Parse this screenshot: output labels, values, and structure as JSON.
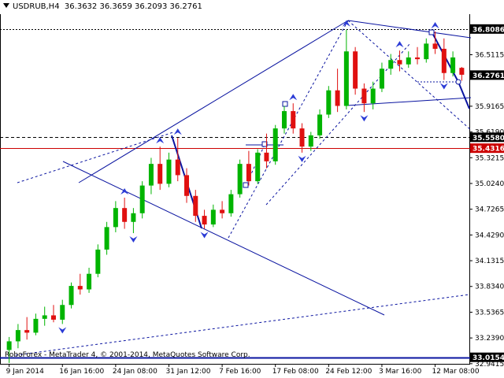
{
  "header": {
    "symbol": "USDRUB,H4",
    "ohlc": "36.3632 36.3659 36.2093 36.2761"
  },
  "copyright": "RoboForex - MetaTrader 4, © 2001-2014, MetaQuotes Software Corp.",
  "colors": {
    "bull": "#00b400",
    "bear": "#e01010",
    "trendline": "#0a14a0",
    "level_red": "#cc0000",
    "arrow": "#2b3bd6"
  },
  "chart_data": {
    "type": "candlestick",
    "symbol": "USDRUB",
    "timeframe": "H4",
    "ylim": [
      32.94,
      36.98
    ],
    "y_ticks": [
      "36.5115",
      "35.9165",
      "35.6190",
      "35.3215",
      "35.0240",
      "34.7265",
      "34.4290",
      "34.1315",
      "33.8340",
      "33.5365",
      "33.2390",
      "32.9415"
    ],
    "x_ticks": [
      "9 Jan 2014",
      "16 Jan 16:00",
      "24 Jan 08:00",
      "31 Jan 12:00",
      "7 Feb 16:00",
      "17 Feb 08:00",
      "24 Feb 12:00",
      "3 Mar 16:00",
      "12 Mar 08:00"
    ],
    "levels": [
      {
        "value": "36.8086",
        "style": "dotted",
        "badge_bg": "#000000",
        "badge_fg": "#ffffff"
      },
      {
        "value": "36.2761",
        "style": "current",
        "badge_bg": "#000000",
        "badge_fg": "#ffffff"
      },
      {
        "value": "35.5580",
        "style": "dashed",
        "badge_bg": "#000000",
        "badge_fg": "#ffffff"
      },
      {
        "value": "35.4316",
        "style": "solid-red",
        "badge_bg": "#cc0000",
        "badge_fg": "#ffffff"
      },
      {
        "value": "33.0154",
        "style": "solid-blue",
        "badge_bg": "#000000",
        "badge_fg": "#ffffff"
      }
    ],
    "candles": [
      {
        "date": "9 Jan 2014",
        "o": 33.1,
        "h": 33.25,
        "l": 32.95,
        "c": 33.2
      },
      {
        "date": "",
        "o": 33.2,
        "h": 33.4,
        "l": 33.12,
        "c": 33.33
      },
      {
        "date": "",
        "o": 33.33,
        "h": 33.48,
        "l": 33.22,
        "c": 33.3
      },
      {
        "date": "",
        "o": 33.3,
        "h": 33.52,
        "l": 33.27,
        "c": 33.46
      },
      {
        "date": "",
        "o": 33.46,
        "h": 33.6,
        "l": 33.38,
        "c": 33.5
      },
      {
        "date": "",
        "o": 33.5,
        "h": 33.62,
        "l": 33.42,
        "c": 33.45
      },
      {
        "date": "16 Jan 16:00",
        "o": 33.45,
        "h": 33.68,
        "l": 33.4,
        "c": 33.62
      },
      {
        "date": "",
        "o": 33.62,
        "h": 33.88,
        "l": 33.58,
        "c": 33.84
      },
      {
        "date": "",
        "o": 33.84,
        "h": 33.98,
        "l": 33.74,
        "c": 33.8
      },
      {
        "date": "",
        "o": 33.8,
        "h": 34.05,
        "l": 33.76,
        "c": 33.98
      },
      {
        "date": "",
        "o": 33.98,
        "h": 34.32,
        "l": 33.94,
        "c": 34.26
      },
      {
        "date": "",
        "o": 34.26,
        "h": 34.58,
        "l": 34.2,
        "c": 34.52
      },
      {
        "date": "24 Jan 08:00",
        "o": 34.52,
        "h": 34.82,
        "l": 34.46,
        "c": 34.74
      },
      {
        "date": "",
        "o": 34.74,
        "h": 34.86,
        "l": 34.5,
        "c": 34.58
      },
      {
        "date": "",
        "o": 34.58,
        "h": 34.74,
        "l": 34.45,
        "c": 34.68
      },
      {
        "date": "",
        "o": 34.68,
        "h": 35.05,
        "l": 34.62,
        "c": 35.0
      },
      {
        "date": "",
        "o": 35.0,
        "h": 35.32,
        "l": 34.9,
        "c": 35.25
      },
      {
        "date": "",
        "o": 35.25,
        "h": 35.45,
        "l": 34.95,
        "c": 35.02
      },
      {
        "date": "31 Jan 12:00",
        "o": 35.02,
        "h": 35.38,
        "l": 34.98,
        "c": 35.3
      },
      {
        "date": "",
        "o": 35.3,
        "h": 35.55,
        "l": 35.05,
        "c": 35.12
      },
      {
        "date": "",
        "o": 35.12,
        "h": 35.2,
        "l": 34.8,
        "c": 34.88
      },
      {
        "date": "",
        "o": 34.88,
        "h": 34.95,
        "l": 34.58,
        "c": 34.65
      },
      {
        "date": "",
        "o": 34.65,
        "h": 34.72,
        "l": 34.5,
        "c": 34.55
      },
      {
        "date": "",
        "o": 34.55,
        "h": 34.78,
        "l": 34.52,
        "c": 34.72
      },
      {
        "date": "7 Feb 16:00",
        "o": 34.72,
        "h": 34.82,
        "l": 34.62,
        "c": 34.68
      },
      {
        "date": "",
        "o": 34.68,
        "h": 34.95,
        "l": 34.64,
        "c": 34.9
      },
      {
        "date": "",
        "o": 34.9,
        "h": 35.3,
        "l": 34.86,
        "c": 35.25
      },
      {
        "date": "",
        "o": 35.25,
        "h": 35.4,
        "l": 35.0,
        "c": 35.05
      },
      {
        "date": "",
        "o": 35.05,
        "h": 35.42,
        "l": 35.02,
        "c": 35.38
      },
      {
        "date": "",
        "o": 35.38,
        "h": 35.6,
        "l": 35.2,
        "c": 35.28
      },
      {
        "date": "17 Feb 08:00",
        "o": 35.28,
        "h": 35.7,
        "l": 35.24,
        "c": 35.66
      },
      {
        "date": "",
        "o": 35.66,
        "h": 35.92,
        "l": 35.6,
        "c": 35.86
      },
      {
        "date": "",
        "o": 35.86,
        "h": 35.95,
        "l": 35.6,
        "c": 35.66
      },
      {
        "date": "",
        "o": 35.66,
        "h": 35.72,
        "l": 35.38,
        "c": 35.45
      },
      {
        "date": "",
        "o": 35.45,
        "h": 35.62,
        "l": 35.4,
        "c": 35.58
      },
      {
        "date": "",
        "o": 35.58,
        "h": 35.88,
        "l": 35.54,
        "c": 35.82
      },
      {
        "date": "24 Feb 12:00",
        "o": 35.82,
        "h": 36.15,
        "l": 35.78,
        "c": 36.1
      },
      {
        "date": "",
        "o": 36.1,
        "h": 36.35,
        "l": 35.85,
        "c": 35.92
      },
      {
        "date": "",
        "o": 35.92,
        "h": 36.8,
        "l": 35.88,
        "c": 36.55
      },
      {
        "date": "",
        "o": 36.55,
        "h": 36.6,
        "l": 36.05,
        "c": 36.12
      },
      {
        "date": "",
        "o": 36.12,
        "h": 36.18,
        "l": 35.85,
        "c": 35.95
      },
      {
        "date": "",
        "o": 35.95,
        "h": 36.2,
        "l": 35.88,
        "c": 36.12
      },
      {
        "date": "3 Mar 16:00",
        "o": 36.12,
        "h": 36.42,
        "l": 36.08,
        "c": 36.35
      },
      {
        "date": "",
        "o": 36.35,
        "h": 36.52,
        "l": 36.28,
        "c": 36.45
      },
      {
        "date": "",
        "o": 36.45,
        "h": 36.56,
        "l": 36.32,
        "c": 36.4
      },
      {
        "date": "",
        "o": 36.4,
        "h": 36.55,
        "l": 36.36,
        "c": 36.48
      },
      {
        "date": "",
        "o": 36.48,
        "h": 36.6,
        "l": 36.4,
        "c": 36.46
      },
      {
        "date": "",
        "o": 36.46,
        "h": 36.7,
        "l": 36.42,
        "c": 36.64
      },
      {
        "date": "12 Mar 08:00",
        "o": 36.64,
        "h": 36.78,
        "l": 36.52,
        "c": 36.58
      },
      {
        "date": "",
        "o": 36.58,
        "h": 36.7,
        "l": 36.22,
        "c": 36.3
      },
      {
        "date": "",
        "o": 36.3,
        "h": 36.55,
        "l": 36.26,
        "c": 36.48
      },
      {
        "date": "",
        "o": 36.36,
        "h": 36.37,
        "l": 36.21,
        "c": 36.28
      }
    ]
  }
}
